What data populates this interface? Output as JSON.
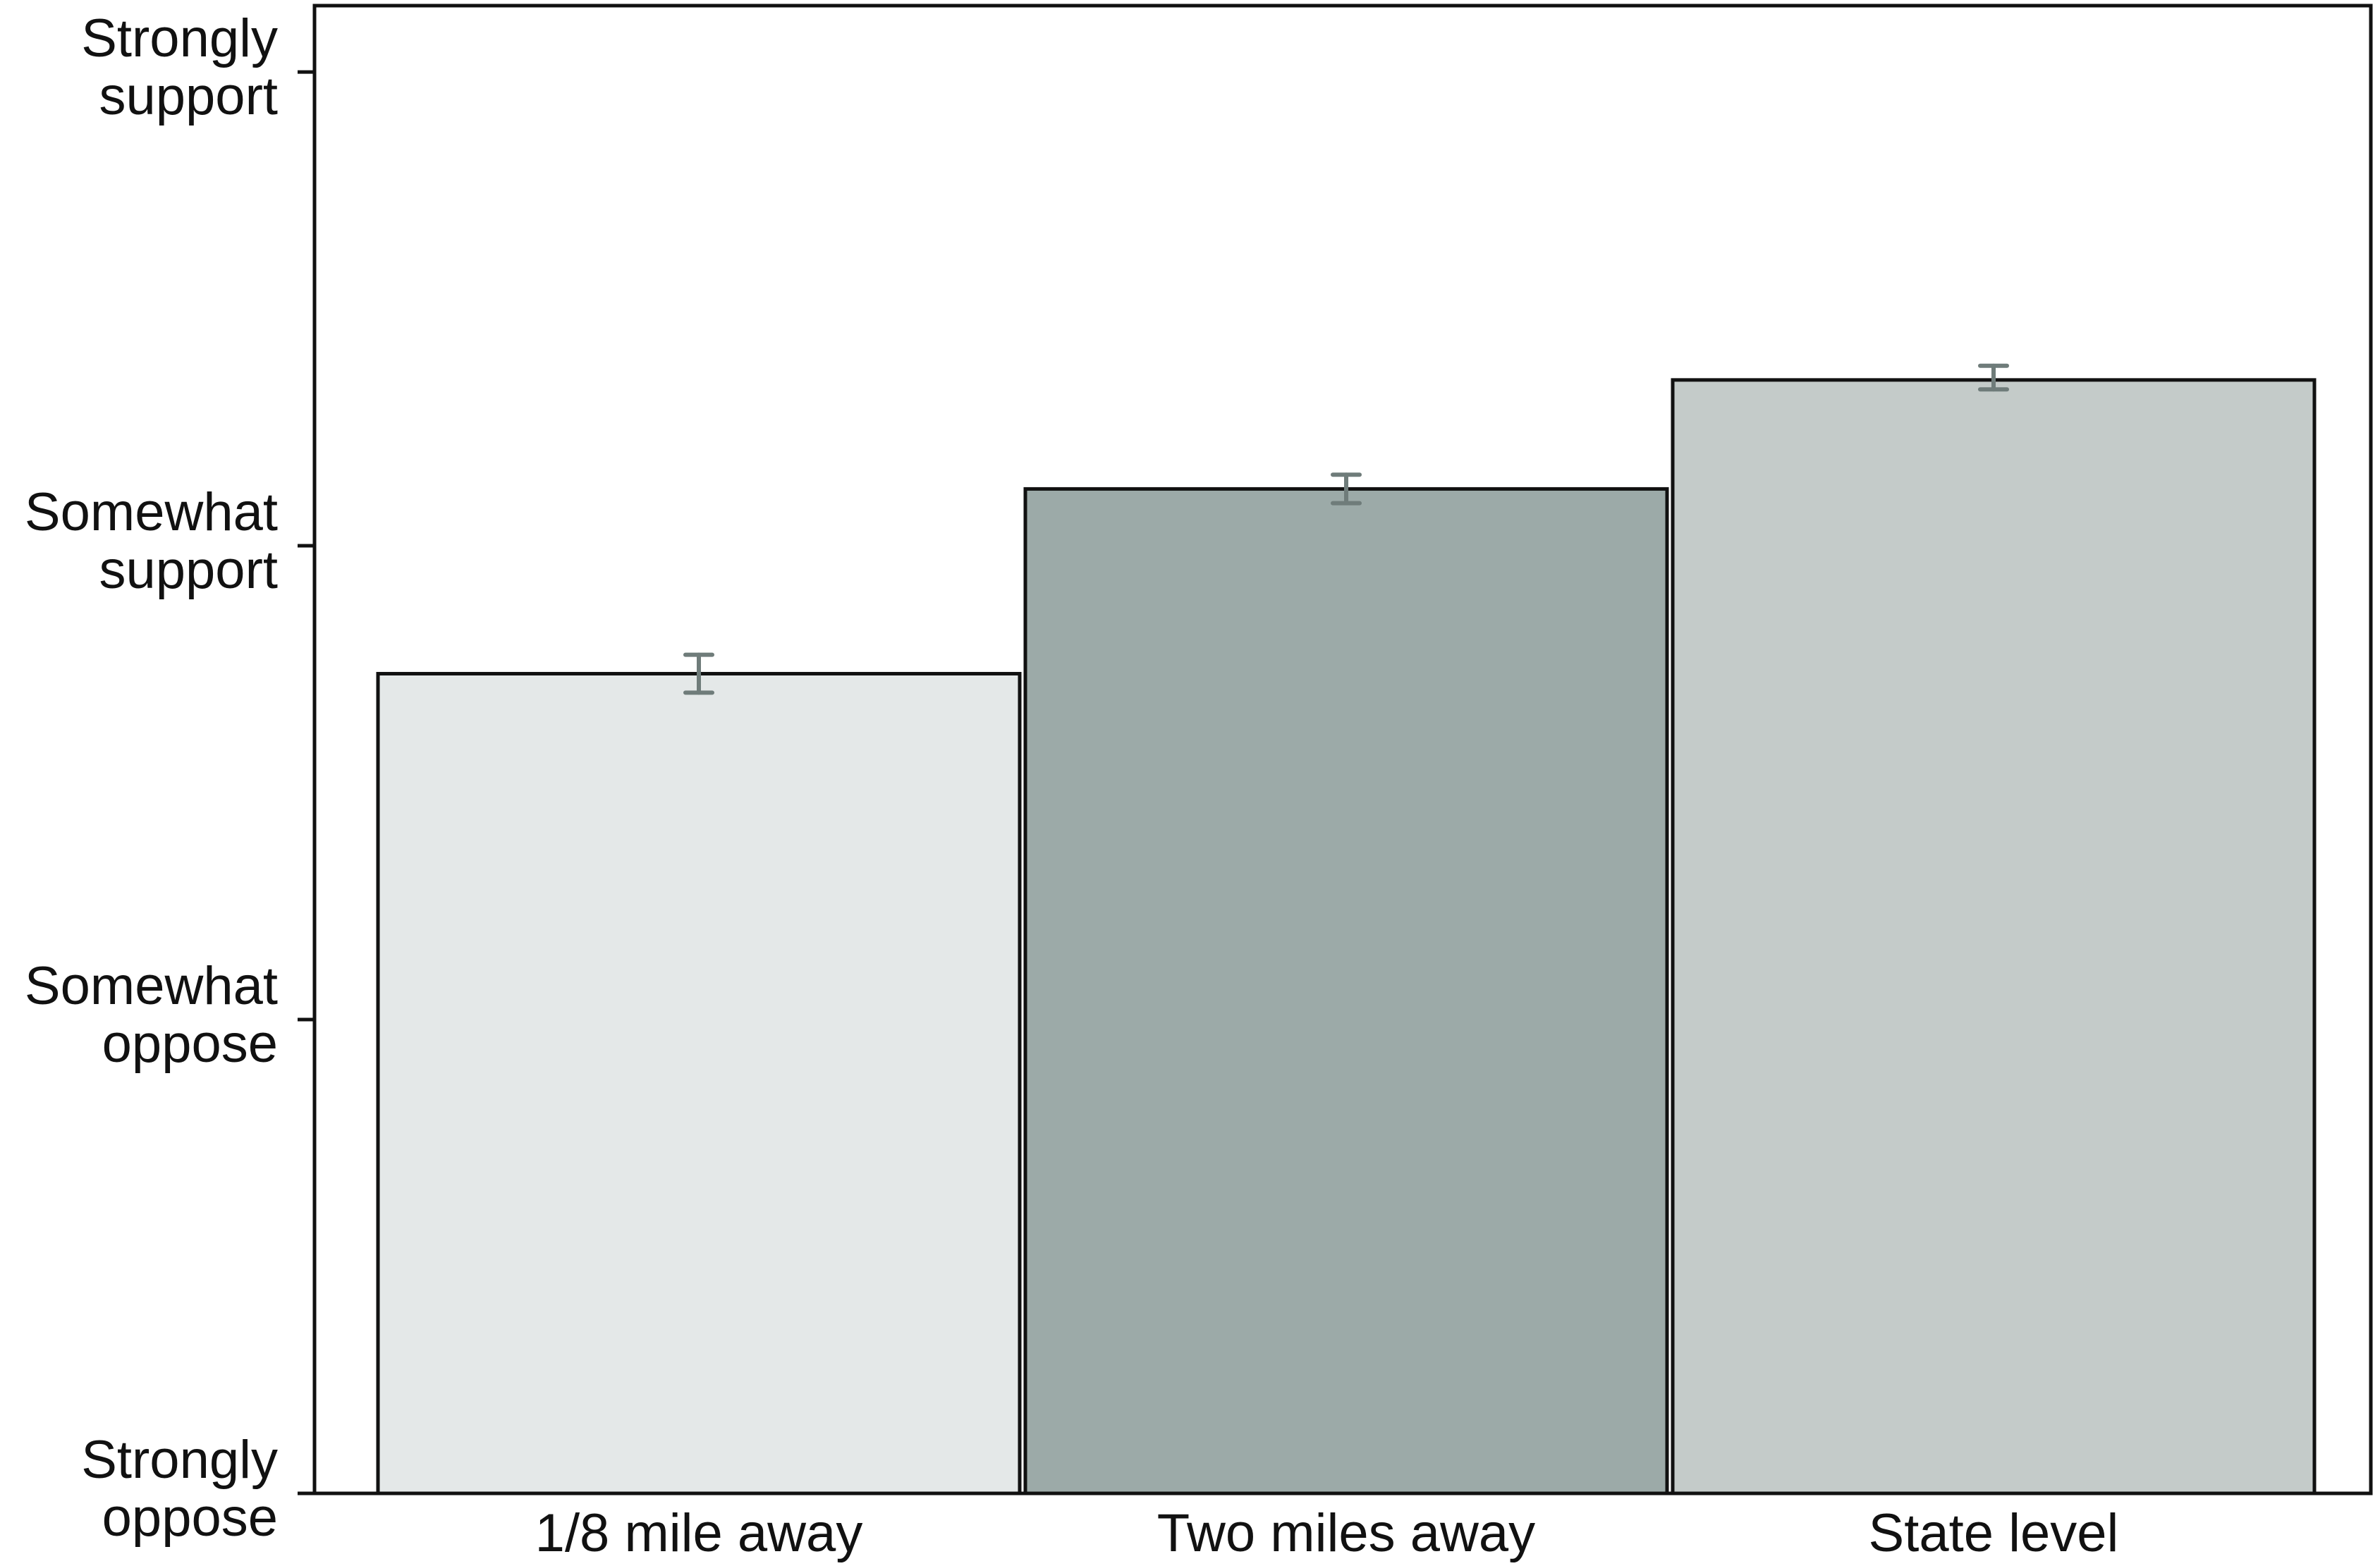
{
  "chart_data": {
    "type": "bar",
    "title": "",
    "xlabel": "",
    "ylabel": "",
    "categories": [
      "1/8 mile away",
      "Two miles away",
      "State level"
    ],
    "values": [
      2.73,
      3.12,
      3.35
    ],
    "error_low": [
      2.69,
      3.09,
      3.33
    ],
    "error_high": [
      2.77,
      3.15,
      3.38
    ],
    "ylim": [
      1,
      4.14
    ],
    "yticks": [
      {
        "value": 1,
        "lines": [
          "Strongly",
          "oppose"
        ]
      },
      {
        "value": 2,
        "lines": [
          "Somewhat",
          "oppose"
        ]
      },
      {
        "value": 3,
        "lines": [
          "Somewhat",
          "support"
        ]
      },
      {
        "value": 4,
        "lines": [
          "Strongly",
          "support"
        ]
      }
    ],
    "colors": {
      "bars": [
        "#e4e8e8",
        "#9caaa8",
        "#c4cbc9"
      ],
      "error_bars": "#6f7c7a",
      "outline": "#111111"
    },
    "grid": false,
    "legend": "none"
  }
}
